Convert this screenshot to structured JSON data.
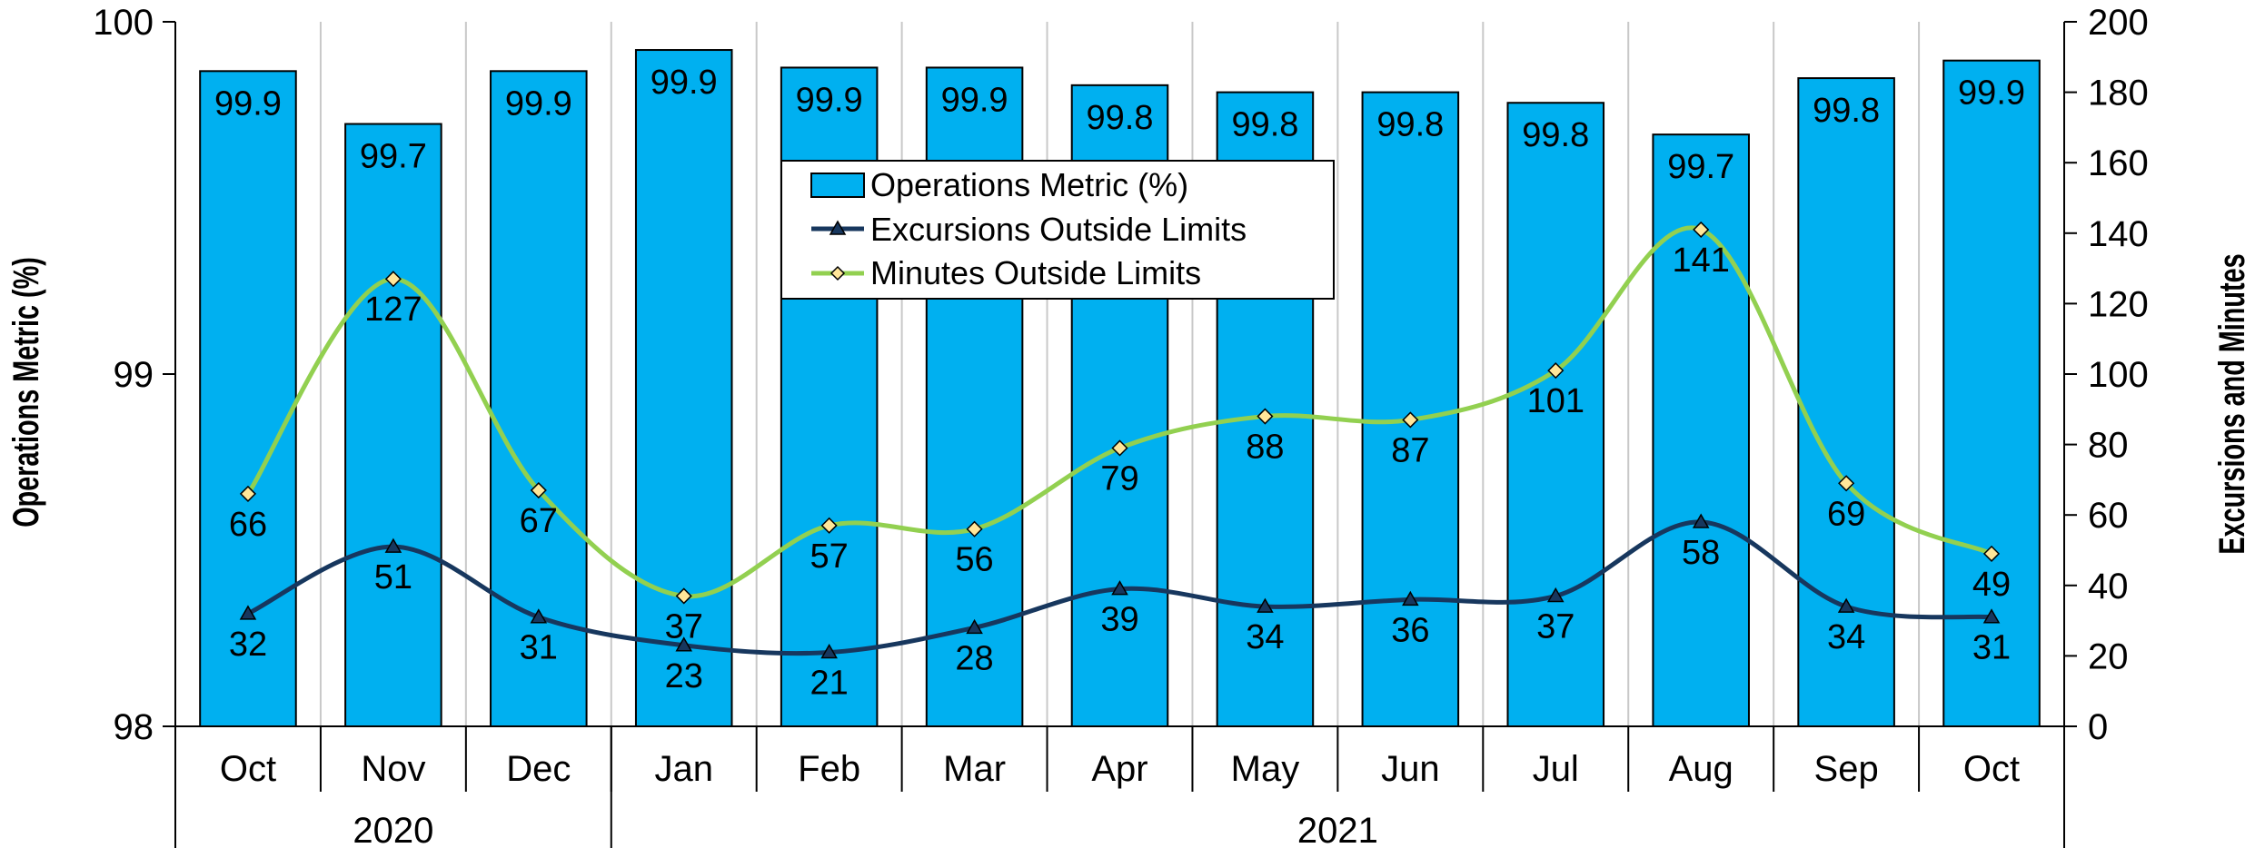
{
  "chart_data": {
    "type": "bar",
    "title": "",
    "categories": [
      "Oct",
      "Nov",
      "Dec",
      "Jan",
      "Feb",
      "Mar",
      "Apr",
      "May",
      "Jun",
      "Jul",
      "Aug",
      "Sep",
      "Oct"
    ],
    "groups": [
      {
        "label": "2020",
        "count": 3
      },
      {
        "label": "2021",
        "count": 10
      }
    ],
    "ylabel": "Operations Metric (%)",
    "ylim": [
      98,
      100
    ],
    "yticks": [
      "98",
      "99",
      "100"
    ],
    "y2label": "Excursions and Minutes",
    "y2lim": [
      0,
      200
    ],
    "y2ticks": [
      "0",
      "20",
      "40",
      "60",
      "80",
      "100",
      "120",
      "140",
      "160",
      "180",
      "200"
    ],
    "grid": "vertical",
    "legend_position": "top-center",
    "series": [
      {
        "name": "Operations Metric (%)",
        "type": "bar",
        "axis": "left",
        "color": "#00B0F0",
        "values": [
          99.86,
          99.71,
          99.86,
          99.92,
          99.87,
          99.87,
          99.82,
          99.8,
          99.8,
          99.77,
          99.68,
          99.84,
          99.89
        ],
        "labels": [
          "99.9",
          "99.7",
          "99.9",
          "99.9",
          "99.9",
          "99.9",
          "99.8",
          "99.8",
          "99.8",
          "99.8",
          "99.7",
          "99.8",
          "99.9"
        ]
      },
      {
        "name": "Excursions Outside Limits",
        "type": "line",
        "axis": "right",
        "color": "#17375E",
        "marker": "triangle",
        "values": [
          32,
          51,
          31,
          23,
          21,
          28,
          39,
          34,
          36,
          37,
          58,
          34,
          31
        ],
        "labels": [
          "32",
          "51",
          "31",
          "23",
          "21",
          "28",
          "39",
          "34",
          "36",
          "37",
          "58",
          "34",
          "31"
        ]
      },
      {
        "name": "Minutes Outside Limits",
        "type": "line",
        "axis": "right",
        "color": "#92D050",
        "marker": "diamond",
        "marker_color": "#FFE699",
        "values": [
          66,
          127,
          67,
          37,
          57,
          56,
          79,
          88,
          87,
          101,
          141,
          69,
          49
        ],
        "labels": [
          "66",
          "127",
          "67",
          "37",
          "57",
          "56",
          "79",
          "88",
          "87",
          "101",
          "141",
          "69",
          "49"
        ]
      }
    ]
  }
}
